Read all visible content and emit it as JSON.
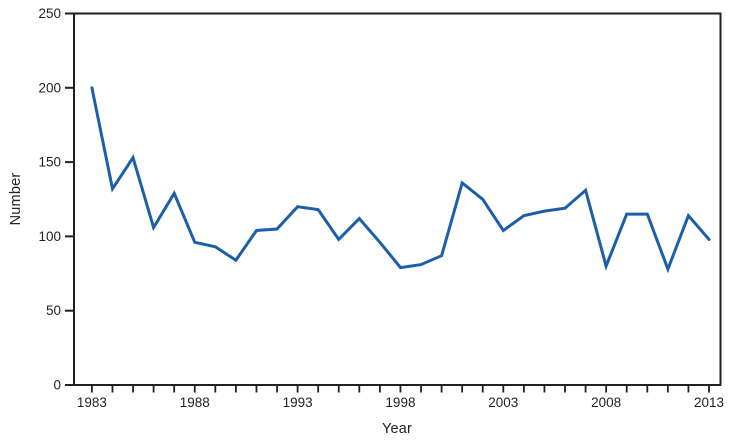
{
  "figure": {
    "background": "#ffffff",
    "axis_color": "#231f20",
    "text_color": "#231f20"
  },
  "chart_data": {
    "type": "line",
    "title": "",
    "xlabel": "Year",
    "ylabel": "Number",
    "x": [
      1983,
      1984,
      1985,
      1986,
      1987,
      1988,
      1989,
      1990,
      1991,
      1992,
      1993,
      1994,
      1995,
      1996,
      1997,
      1998,
      1999,
      2000,
      2001,
      2002,
      2003,
      2004,
      2005,
      2006,
      2007,
      2008,
      2009,
      2010,
      2011,
      2012,
      2013
    ],
    "series": [
      {
        "name": "Number",
        "color": "#1c5fa8",
        "values": [
          200,
          132,
          153,
          106,
          129,
          96,
          93,
          84,
          104,
          105,
          120,
          118,
          98,
          112,
          96,
          79,
          81,
          87,
          136,
          125,
          104,
          114,
          117,
          119,
          131,
          80,
          115,
          115,
          78,
          114,
          98
        ]
      }
    ],
    "ylim": [
      0,
      250
    ],
    "yticks": [
      0,
      50,
      100,
      150,
      200,
      250
    ],
    "xticks_labeled": [
      1983,
      1988,
      1993,
      1998,
      2003,
      2008,
      2013
    ],
    "xtick_minor_interval": 1,
    "grid": false,
    "legend": false,
    "plot_border": "box"
  }
}
